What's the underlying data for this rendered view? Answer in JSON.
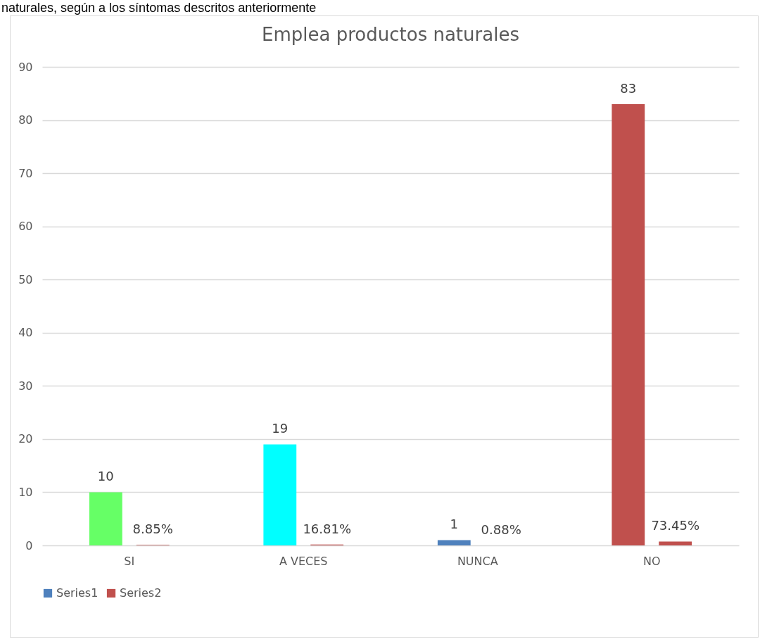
{
  "chart_data": {
    "type": "bar",
    "title": "Emplea productos naturales",
    "annotations": [
      "naturales, según a los síntomas descritos anteriormente"
    ],
    "categories": [
      "SI",
      "A VECES",
      "NUNCA",
      "NO"
    ],
    "series": [
      {
        "name": "Series1",
        "color": "#4f81bd",
        "colors": [
          "#66ff66",
          "#00ffff",
          "#4f81bd",
          "#c0504d"
        ],
        "values": [
          10,
          19,
          1,
          83
        ],
        "value_labels": [
          "10",
          "19",
          "1",
          "83"
        ]
      },
      {
        "name": "Series2",
        "color": "#c0504d",
        "values": [
          0.0885,
          0.1681,
          0.0088,
          0.7345
        ],
        "value_labels": [
          "8.85%",
          "16.81%",
          "0.88%",
          "73.45%"
        ]
      }
    ],
    "ylim": [
      0,
      90
    ],
    "yticks": [
      0,
      10,
      20,
      30,
      40,
      50,
      60,
      70,
      80,
      90
    ],
    "grid": "y",
    "legend": "bottom"
  }
}
